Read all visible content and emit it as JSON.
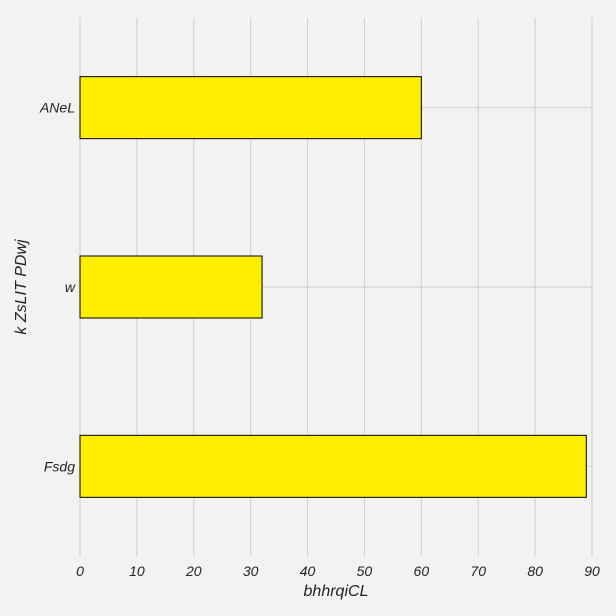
{
  "chart_data": {
    "type": "bar",
    "orientation": "horizontal",
    "categories": [
      "ANeL",
      "w",
      "Fsdg"
    ],
    "values": [
      60,
      32,
      89
    ],
    "xlabel": "bhhrqiCL",
    "ylabel": "k ZsLIT  PDwj",
    "xlim": [
      0,
      90
    ],
    "xticks": [
      0,
      10,
      20,
      30,
      40,
      50,
      60,
      70,
      80,
      90
    ],
    "grid": true,
    "bar_color": "#ffee00",
    "bar_edge_color": "#000000",
    "background_color": "#f2f2f2",
    "grid_color": "#cfcfcf"
  }
}
